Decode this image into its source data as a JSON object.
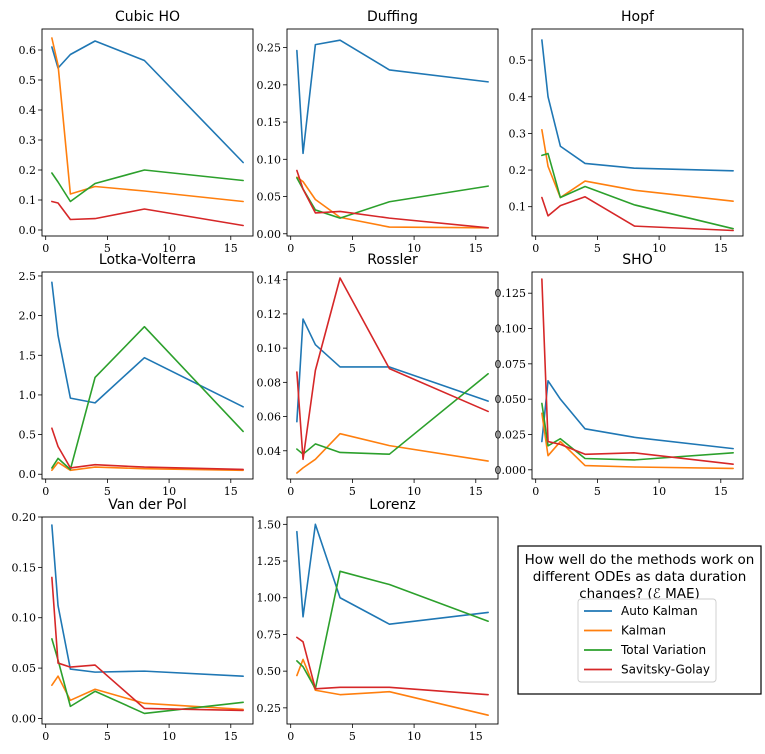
{
  "chart_data": {
    "type": "line",
    "series_names": [
      "Auto Kalman",
      "Kalman",
      "Total Variation",
      "Savitsky-Golay"
    ],
    "series_colors": [
      "#1f77b4",
      "#ff7f0e",
      "#2ca02c",
      "#d62728"
    ],
    "legend_title_lines": [
      "How well do the methods work on",
      "different ODEs as data duration",
      "changes? (ℰ MAE)"
    ],
    "x": [
      0.5,
      1,
      2,
      4,
      8,
      16
    ],
    "xlim": [
      -0.3,
      16.8
    ],
    "xticks": [
      0,
      5,
      10,
      15
    ],
    "panels": [
      {
        "title": "Cubic HO",
        "ylim": [
          -0.02,
          0.67
        ],
        "yticks": [
          0.0,
          0.1,
          0.2,
          0.3,
          0.4,
          0.5,
          0.6
        ],
        "yticklabels": [
          "0.0",
          "0.1",
          "0.2",
          "0.3",
          "0.4",
          "0.5",
          "0.6"
        ],
        "series": [
          {
            "name": "Auto Kalman",
            "values": [
              0.61,
              0.54,
              0.585,
              0.63,
              0.565,
              0.225
            ]
          },
          {
            "name": "Kalman",
            "values": [
              0.64,
              0.55,
              0.12,
              0.145,
              0.13,
              0.095
            ]
          },
          {
            "name": "Total Variation",
            "values": [
              0.19,
              0.16,
              0.095,
              0.155,
              0.2,
              0.165
            ]
          },
          {
            "name": "Savitsky-Golay",
            "values": [
              0.095,
              0.09,
              0.035,
              0.038,
              0.07,
              0.015
            ]
          }
        ]
      },
      {
        "title": "Duffing",
        "ylim": [
          -0.003,
          0.275
        ],
        "yticks": [
          0.0,
          0.05,
          0.1,
          0.15,
          0.2,
          0.25
        ],
        "yticklabels": [
          "0.00",
          "0.05",
          "0.10",
          "0.15",
          "0.20",
          "0.25"
        ],
        "series": [
          {
            "name": "Auto Kalman",
            "values": [
              0.246,
              0.108,
              0.254,
              0.26,
              0.22,
              0.204
            ]
          },
          {
            "name": "Kalman",
            "values": [
              0.076,
              0.07,
              0.046,
              0.022,
              0.009,
              0.008
            ]
          },
          {
            "name": "Total Variation",
            "values": [
              0.075,
              0.06,
              0.032,
              0.021,
              0.043,
              0.064
            ]
          },
          {
            "name": "Savitsky-Golay",
            "values": [
              0.085,
              0.06,
              0.028,
              0.03,
              0.021,
              0.008
            ]
          }
        ]
      },
      {
        "title": "Hopf",
        "ylim": [
          0.02,
          0.585
        ],
        "yticks": [
          0.1,
          0.2,
          0.3,
          0.4,
          0.5
        ],
        "yticklabels": [
          "0.1",
          "0.2",
          "0.3",
          "0.4",
          "0.5"
        ],
        "series": [
          {
            "name": "Auto Kalman",
            "values": [
              0.555,
              0.4,
              0.265,
              0.218,
              0.205,
              0.198
            ]
          },
          {
            "name": "Kalman",
            "values": [
              0.31,
              0.21,
              0.125,
              0.17,
              0.145,
              0.115
            ]
          },
          {
            "name": "Total Variation",
            "values": [
              0.24,
              0.245,
              0.125,
              0.155,
              0.105,
              0.04
            ]
          },
          {
            "name": "Savitsky-Golay",
            "values": [
              0.125,
              0.075,
              0.103,
              0.127,
              0.047,
              0.035
            ]
          }
        ]
      },
      {
        "title": "Lotka-Volterra",
        "ylim": [
          -0.06,
          2.55
        ],
        "yticks": [
          0.0,
          0.5,
          1.0,
          1.5,
          2.0,
          2.5
        ],
        "yticklabels": [
          "0.0",
          "0.5",
          "1.0",
          "1.5",
          "2.0",
          "2.5"
        ],
        "series": [
          {
            "name": "Auto Kalman",
            "values": [
              2.42,
              1.75,
              0.96,
              0.9,
              1.47,
              0.85
            ]
          },
          {
            "name": "Kalman",
            "values": [
              0.05,
              0.15,
              0.05,
              0.09,
              0.07,
              0.05
            ]
          },
          {
            "name": "Total Variation",
            "values": [
              0.08,
              0.2,
              0.06,
              1.22,
              1.86,
              0.54
            ]
          },
          {
            "name": "Savitsky-Golay",
            "values": [
              0.58,
              0.35,
              0.08,
              0.12,
              0.09,
              0.06
            ]
          }
        ]
      },
      {
        "title": "Rossler",
        "ylim": [
          0.0235,
          0.1445
        ],
        "yticks": [
          0.04,
          0.06,
          0.08,
          0.1,
          0.12,
          0.14
        ],
        "yticklabels": [
          "0.04",
          "0.06",
          "0.08",
          "0.10",
          "0.12",
          "0.14"
        ],
        "series": [
          {
            "name": "Auto Kalman",
            "values": [
              0.057,
              0.117,
              0.102,
              0.089,
              0.089,
              0.069
            ]
          },
          {
            "name": "Kalman",
            "values": [
              0.027,
              0.03,
              0.035,
              0.05,
              0.043,
              0.034
            ]
          },
          {
            "name": "Total Variation",
            "values": [
              0.041,
              0.038,
              0.044,
              0.039,
              0.038,
              0.085
            ]
          },
          {
            "name": "Savitsky-Golay",
            "values": [
              0.086,
              0.035,
              0.087,
              0.141,
              0.088,
              0.063
            ]
          }
        ]
      },
      {
        "title": "SHO",
        "ylim": [
          -0.0065,
          0.14
        ],
        "yticks": [
          0.0,
          0.025,
          0.05,
          0.075,
          0.1,
          0.125
        ],
        "yticklabels": [
          "0.000",
          "0.025",
          "0.050",
          "0.075",
          "0.100",
          "0.125"
        ],
        "series": [
          {
            "name": "Auto Kalman",
            "values": [
              0.02,
              0.063,
              0.05,
              0.029,
              0.023,
              0.015
            ]
          },
          {
            "name": "Kalman",
            "values": [
              0.04,
              0.01,
              0.02,
              0.003,
              0.002,
              0.001
            ]
          },
          {
            "name": "Total Variation",
            "values": [
              0.047,
              0.017,
              0.022,
              0.008,
              0.007,
              0.012
            ]
          },
          {
            "name": "Savitsky-Golay",
            "values": [
              0.135,
              0.02,
              0.018,
              0.011,
              0.012,
              0.004
            ]
          }
        ]
      },
      {
        "title": "Van der Pol",
        "ylim": [
          -0.0055,
          0.2
        ],
        "yticks": [
          0.0,
          0.05,
          0.1,
          0.15,
          0.2
        ],
        "yticklabels": [
          "0.00",
          "0.05",
          "0.10",
          "0.15",
          "0.20"
        ],
        "series": [
          {
            "name": "Auto Kalman",
            "values": [
              0.192,
              0.112,
              0.049,
              0.046,
              0.047,
              0.042
            ]
          },
          {
            "name": "Kalman",
            "values": [
              0.033,
              0.042,
              0.018,
              0.029,
              0.015,
              0.009
            ]
          },
          {
            "name": "Total Variation",
            "values": [
              0.079,
              0.058,
              0.012,
              0.027,
              0.005,
              0.016
            ]
          },
          {
            "name": "Savitsky-Golay",
            "values": [
              0.14,
              0.055,
              0.051,
              0.053,
              0.01,
              0.008
            ]
          }
        ]
      },
      {
        "title": "Lorenz",
        "ylim": [
          0.14,
          1.55
        ],
        "yticks": [
          0.25,
          0.5,
          0.75,
          1.0,
          1.25,
          1.5
        ],
        "yticklabels": [
          "0.25",
          "0.50",
          "0.75",
          "1.00",
          "1.25",
          "1.50"
        ],
        "series": [
          {
            "name": "Auto Kalman",
            "values": [
              1.45,
              0.87,
              1.5,
              1.0,
              0.82,
              0.9
            ]
          },
          {
            "name": "Kalman",
            "values": [
              0.47,
              0.58,
              0.37,
              0.34,
              0.36,
              0.2
            ]
          },
          {
            "name": "Total Variation",
            "values": [
              0.57,
              0.53,
              0.38,
              1.18,
              1.09,
              0.84
            ]
          },
          {
            "name": "Savitsky-Golay",
            "values": [
              0.73,
              0.7,
              0.38,
              0.39,
              0.39,
              0.34
            ]
          }
        ]
      }
    ]
  }
}
